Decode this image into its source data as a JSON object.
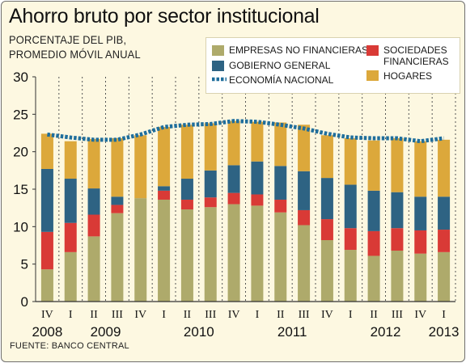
{
  "title": "Ahorro bruto por sector institucional",
  "subtitle_line1": "PORCENTAJE DEL PIB,",
  "subtitle_line2": "PROMEDIO MÓVIL ANUAL",
  "source": "FUENTE: BANCO CENTRAL",
  "colors": {
    "empresas": "#aeaa6b",
    "sociedades": "#d93a36",
    "gobierno": "#2e6383",
    "hogares": "#dca83b",
    "economia": "#1f6e9c",
    "background": "#fdf8e1"
  },
  "legend": {
    "empresas": "EMPRESAS NO FINANCIERAS",
    "gobierno": "GOBIERNO GENERAL",
    "economia": "ECONOMÍA NACIONAL",
    "sociedades_line1": "SOCIEDADES",
    "sociedades_line2": "FINANCIERAS",
    "hogares": "HOGARES"
  },
  "chart_data": {
    "type": "bar",
    "stacked": true,
    "ylim": [
      0,
      30
    ],
    "yticks": [
      0,
      5,
      10,
      15,
      20,
      25,
      30
    ],
    "categories": [
      "IV",
      "I",
      "II",
      "III",
      "IV",
      "I",
      "II",
      "III",
      "IV",
      "I",
      "II",
      "III",
      "IV",
      "I",
      "II",
      "III",
      "IV",
      "I"
    ],
    "years": [
      {
        "label": "2008",
        "first": 0,
        "last": 0
      },
      {
        "label": "2009",
        "first": 1,
        "last": 4
      },
      {
        "label": "2010",
        "first": 5,
        "last": 8
      },
      {
        "label": "2011",
        "first": 9,
        "last": 12
      },
      {
        "label": "2012",
        "first": 13,
        "last": 16
      },
      {
        "label": "2013",
        "first": 17,
        "last": 17
      }
    ],
    "series": [
      {
        "name": "EMPRESAS NO FINANCIERAS",
        "key": "empresas",
        "values": [
          4.3,
          6.6,
          8.7,
          11.8,
          13.8,
          13.6,
          12.3,
          12.6,
          13.0,
          12.8,
          11.9,
          10.2,
          8.2,
          6.9,
          6.1,
          6.8,
          6.4,
          6.6
        ]
      },
      {
        "name": "SOCIEDADES FINANCIERAS",
        "key": "sociedades",
        "values": [
          5.0,
          3.9,
          2.9,
          1.1,
          0.0,
          1.2,
          1.3,
          1.3,
          1.5,
          1.5,
          1.7,
          2.0,
          2.8,
          2.9,
          3.3,
          3.0,
          3.1,
          3.0
        ]
      },
      {
        "name": "GOBIERNO GENERAL",
        "key": "gobierno",
        "values": [
          8.4,
          5.9,
          3.5,
          1.1,
          0.0,
          0.6,
          2.8,
          3.6,
          3.7,
          4.4,
          4.5,
          5.2,
          5.5,
          5.8,
          5.4,
          4.8,
          4.5,
          4.4
        ]
      },
      {
        "name": "HOGARES",
        "key": "hogares",
        "values": [
          4.7,
          5.0,
          6.6,
          7.8,
          8.4,
          7.9,
          7.2,
          6.3,
          5.9,
          5.3,
          5.8,
          6.2,
          5.7,
          6.2,
          6.7,
          7.2,
          7.4,
          7.6
        ]
      }
    ],
    "line": {
      "name": "ECONOMÍA NACIONAL",
      "key": "economia",
      "values": [
        22.3,
        21.9,
        21.6,
        21.6,
        22.3,
        23.3,
        23.6,
        23.7,
        24.1,
        24.0,
        23.6,
        23.1,
        22.4,
        21.9,
        21.8,
        21.8,
        21.4,
        21.8
      ]
    }
  }
}
